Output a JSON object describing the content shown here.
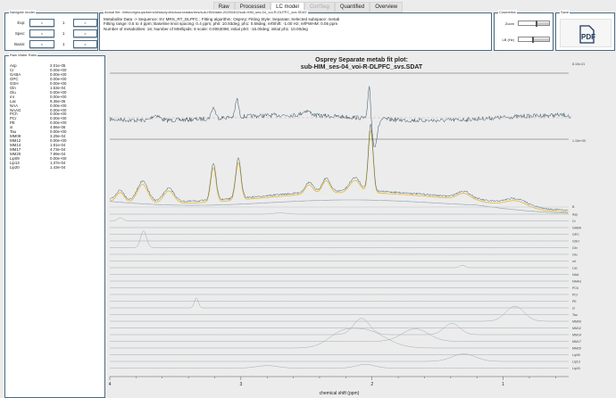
{
  "tabs": [
    {
      "label": "Raw",
      "state": "normal"
    },
    {
      "label": "Processed",
      "state": "normal"
    },
    {
      "label": "LC model",
      "state": "active"
    },
    {
      "label": "Cor/Seg",
      "state": "disabled"
    },
    {
      "label": "Quantified",
      "state": "normal"
    },
    {
      "label": "Overview",
      "state": "normal"
    }
  ],
  "navigate": {
    "title": "Navigate model",
    "rows": [
      {
        "label": "Exp:",
        "value": "1",
        "prev": "<",
        "next": ">"
      },
      {
        "label": "Spec:",
        "value": "1",
        "prev": "<",
        "next": ">"
      },
      {
        "label": "Basis:",
        "value": "1",
        "prev": "<",
        "next": ">"
      }
    ]
  },
  "info": {
    "title": "Actual file: /mfs/cofgroups/kernchl/study.dbs/sourcedata/mrs/sub-HIM/date-20250402/sub-HIM_ses-04_voi-R-DLPFC_svs.SDAT",
    "lines": [
      "Metabolite Data -> Sequence: SV MRS_RT_DLPFC ; Fitting algorithm: Osprey; Fitting Style: Separate; Selected subspace: metab",
      "Fitting range: 0.5 to 4 ppm; Baseline knot spacing: 0.4 ppm; ph0: 10.93deg; ph1: 0.68deg; refShift: -1.00 Hz; refFWHM: 0.05 ppm",
      "Number of metabolites: 16; Number of MM/lipids: 8 scale: 0.0063098; initial ph0: -15.00deg; initial ph1: 10.00deg"
    ]
  },
  "cosmetics": {
    "title": "Cosmetics",
    "zoom_label": "Zoom",
    "lb_label": "LB (Hz)",
    "zoom_level": 0.55,
    "lb_level": 0.45
  },
  "save": {
    "title": "Save",
    "pdf_label": "PDF"
  },
  "ratio": {
    "title": "Raw Water Ratio",
    "rows": [
      [
        "Asp",
        "2.01e-05"
      ],
      [
        "Cr",
        "0.00e+00"
      ],
      [
        "GABA",
        "0.00e+00"
      ],
      [
        "GPC",
        "0.00e+00"
      ],
      [
        "GSH",
        "0.00e+00"
      ],
      [
        "Gln",
        "1.53e-04"
      ],
      [
        "Glu",
        "0.00e+00"
      ],
      [
        "mI",
        "0.00e+00"
      ],
      [
        "Lac",
        "9.35e-06"
      ],
      [
        "NAA",
        "0.00e+00"
      ],
      [
        "NAAG",
        "0.00e+00"
      ],
      [
        "PCh",
        "0.00e+00"
      ],
      [
        "PCr",
        "0.00e+00"
      ],
      [
        "PE",
        "0.00e+00"
      ],
      [
        "sI",
        "4.86e-06"
      ],
      [
        "Tau",
        "0.00e+00"
      ],
      [
        "MM09",
        "3.29e-04"
      ],
      [
        "MM12",
        "0.00e+00"
      ],
      [
        "MM14",
        "1.91e-04"
      ],
      [
        "MM17",
        "4.73e-04"
      ],
      [
        "MM20",
        "7.99e-04"
      ],
      [
        "Lip09",
        "0.00e+00"
      ],
      [
        "Lip13",
        "1.37e-04"
      ],
      [
        "Lip20",
        "1.43e-04"
      ]
    ]
  },
  "chart_data": {
    "type": "line",
    "title": "Osprey Separate metab fit plot:",
    "subtitle": "sub-HIM_ses-04_voi-R-DLPFC_svs.SDAT",
    "xlabel": "chemical shift (ppm)",
    "xlim": [
      4,
      0.5
    ],
    "x_reversed": true,
    "xticks": [
      "4",
      "3",
      "2",
      "1"
    ],
    "residual_label": "R",
    "residual_max_label": "8.10e-01",
    "fit_max_label": "1.10e+00",
    "colors": {
      "data": "#3f5f70",
      "fit": "#e8b830",
      "baseline": "#8aa0b0",
      "component": "#9aa8b2",
      "residual": "#2f4f5f"
    },
    "baseline_label": "B",
    "fit_peaks": [
      [
        3.92,
        0.15,
        0.03
      ],
      [
        3.75,
        0.3,
        0.04
      ],
      [
        3.55,
        0.2,
        0.04
      ],
      [
        3.21,
        0.55,
        0.02
      ],
      [
        3.02,
        0.6,
        0.02
      ],
      [
        2.48,
        0.15,
        0.03
      ],
      [
        2.35,
        0.2,
        0.03
      ],
      [
        2.13,
        0.2,
        0.04
      ],
      [
        2.01,
        1.0,
        0.018
      ],
      [
        1.3,
        0.1,
        0.05
      ],
      [
        0.9,
        0.1,
        0.08
      ]
    ],
    "components": [
      {
        "name": "Asp",
        "peaks": [
          [
            2.7,
            0.2,
            0.05
          ]
        ]
      },
      {
        "name": "Cr",
        "peaks": [
          [
            3.92,
            0.5,
            0.02
          ]
        ]
      },
      {
        "name": "GABA",
        "peaks": []
      },
      {
        "name": "GPC",
        "peaks": []
      },
      {
        "name": "GSH",
        "peaks": []
      },
      {
        "name": "Gln",
        "peaks": [
          [
            3.75,
            1.8,
            0.02
          ],
          [
            3.73,
            1.2,
            0.02
          ]
        ]
      },
      {
        "name": "Glu",
        "peaks": []
      },
      {
        "name": "mI",
        "peaks": []
      },
      {
        "name": "Lac",
        "peaks": [
          [
            1.31,
            0.4,
            0.02
          ]
        ]
      },
      {
        "name": "NAA",
        "peaks": []
      },
      {
        "name": "NAAG",
        "peaks": []
      },
      {
        "name": "PCh",
        "peaks": []
      },
      {
        "name": "PCr",
        "peaks": []
      },
      {
        "name": "PE",
        "peaks": []
      },
      {
        "name": "sI",
        "peaks": [
          [
            3.34,
            1.6,
            0.015
          ]
        ]
      },
      {
        "name": "Tau",
        "peaks": []
      },
      {
        "name": "MM09",
        "peaks": [
          [
            0.91,
            2.4,
            0.07
          ]
        ]
      },
      {
        "name": "MM12",
        "peaks": []
      },
      {
        "name": "MM14",
        "peaks": [
          [
            2.08,
            2.6,
            0.06
          ],
          [
            1.39,
            1.8,
            0.06
          ]
        ]
      },
      {
        "name": "MM17",
        "peaks": [
          [
            1.67,
            2.0,
            0.1
          ]
        ]
      },
      {
        "name": "MM20",
        "peaks": [
          [
            2.05,
            2.8,
            0.15
          ],
          [
            2.25,
            1.5,
            0.1
          ]
        ]
      },
      {
        "name": "Lip09",
        "peaks": []
      },
      {
        "name": "Lip13",
        "peaks": [
          [
            1.3,
            1.2,
            0.09
          ]
        ]
      },
      {
        "name": "Lip20",
        "peaks": [
          [
            2.05,
            0.6,
            0.07
          ],
          [
            2.8,
            0.4,
            0.08
          ]
        ]
      }
    ]
  }
}
